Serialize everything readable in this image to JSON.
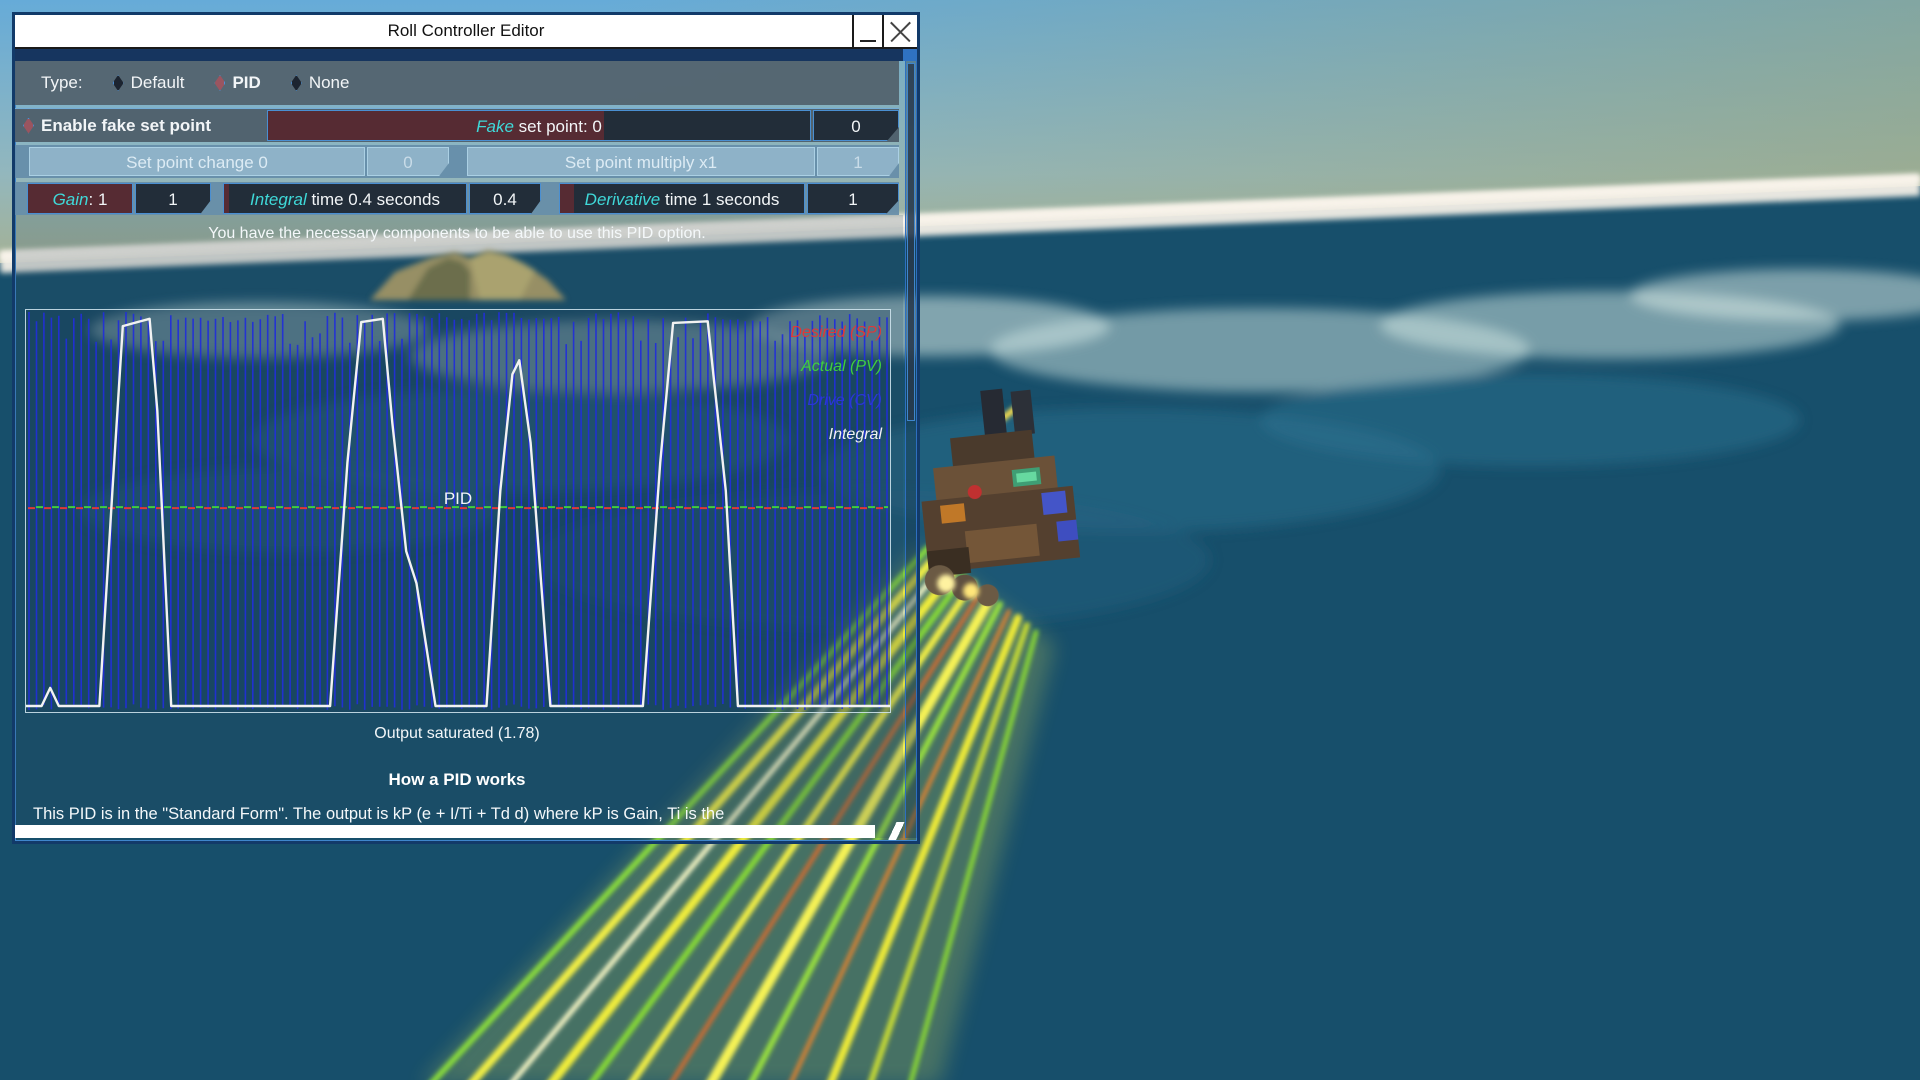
{
  "window": {
    "title": "Roll Controller Editor"
  },
  "colors": {
    "accent_blue": "#4a90d9",
    "selected_diamond": "#9a5560",
    "unselected_diamond": "#1c2430",
    "cyan_keyword": "#3fd8d8",
    "slider_fill_red": "#562b33",
    "slider_bg_dark": "#222d39",
    "titlebar_bg": "#ffffff"
  },
  "type_row": {
    "label": "Type:",
    "options": [
      {
        "label": "Default",
        "selected": false
      },
      {
        "label": "PID",
        "selected": true
      },
      {
        "label": "None",
        "selected": false
      }
    ]
  },
  "fake_row": {
    "checkbox_label": "Enable fake set point",
    "slider_em": "Fake",
    "slider_text": " set point: 0",
    "value": "0"
  },
  "setpoint_row": {
    "change_label": "Set point change 0",
    "change_value": "0",
    "multiply_label": "Set point multiply x1",
    "multiply_value": "1"
  },
  "pid_row": {
    "gain_em": "Gain",
    "gain_text": ": 1",
    "gain_value": "1",
    "integral_em": "Integral",
    "integral_text": " time 0.4 seconds",
    "integral_value": "0.4",
    "derivative_em": "Derivative",
    "derivative_text": " time 1 seconds",
    "derivative_value": "1"
  },
  "message": "You have the necessary components to be able to use this PID option.",
  "graph": {
    "center_label": "PID",
    "saturation_text": "Output saturated (1.78)",
    "drive_color": "#2230d6",
    "drive_line_count": 116,
    "integral_color": "#f2f2f2",
    "legend": [
      {
        "label": "Desired (SP)",
        "color": "#e03838"
      },
      {
        "label": "Actual (PV)",
        "color": "#3fcf3f"
      },
      {
        "label": "Drive (CV)",
        "color": "#2b36d8"
      },
      {
        "label": "Integral",
        "color": "#f2f2f2"
      }
    ],
    "integral_points": [
      [
        0,
        0.985
      ],
      [
        0.018,
        0.985
      ],
      [
        0.028,
        0.94
      ],
      [
        0.038,
        0.985
      ],
      [
        0.085,
        0.985
      ],
      [
        0.1,
        0.45
      ],
      [
        0.112,
        0.04
      ],
      [
        0.143,
        0.022
      ],
      [
        0.152,
        0.25
      ],
      [
        0.168,
        0.985
      ],
      [
        0.352,
        0.985
      ],
      [
        0.372,
        0.38
      ],
      [
        0.388,
        0.03
      ],
      [
        0.413,
        0.022
      ],
      [
        0.424,
        0.28
      ],
      [
        0.44,
        0.6
      ],
      [
        0.452,
        0.68
      ],
      [
        0.474,
        0.985
      ],
      [
        0.533,
        0.985
      ],
      [
        0.549,
        0.45
      ],
      [
        0.563,
        0.16
      ],
      [
        0.571,
        0.125
      ],
      [
        0.584,
        0.33
      ],
      [
        0.607,
        0.985
      ],
      [
        0.714,
        0.985
      ],
      [
        0.734,
        0.38
      ],
      [
        0.749,
        0.032
      ],
      [
        0.789,
        0.028
      ],
      [
        0.81,
        0.45
      ],
      [
        0.824,
        0.985
      ],
      [
        1,
        0.985
      ]
    ]
  },
  "info": {
    "heading": "How a PID works",
    "body": "This PID is in the \"Standard Form\". The output is kP (e  +  I/Ti  +  Td d) where kP is Gain, Ti is the"
  }
}
